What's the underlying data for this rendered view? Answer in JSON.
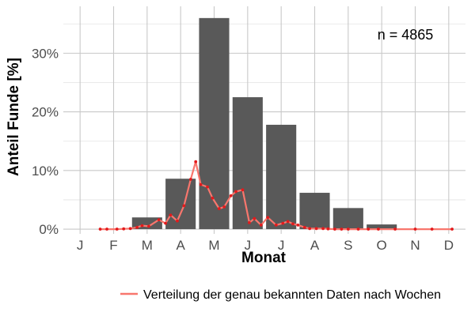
{
  "chart_data": {
    "type": "bar",
    "xlabel": "Monat",
    "ylabel": "Anteil Funde [%]",
    "annotation": "n = 4865",
    "categories": [
      "J",
      "F",
      "M",
      "A",
      "M",
      "J",
      "J",
      "A",
      "S",
      "O",
      "N",
      "D"
    ],
    "series": [
      {
        "type": "bar",
        "values": [
          0,
          0,
          2.0,
          8.6,
          36.0,
          22.5,
          17.8,
          6.2,
          3.6,
          0.8,
          0,
          0
        ],
        "color": "#595959"
      },
      {
        "type": "line",
        "name": "Verteilung der genau bekannten Daten nach Wochen",
        "color": "#f8766d",
        "point_color": "#e31a1c",
        "x": [
          1.6,
          1.8,
          2.1,
          2.3,
          2.5,
          2.7,
          2.85,
          3.05,
          3.35,
          3.55,
          3.7,
          3.9,
          4.1,
          4.3,
          4.45,
          4.6,
          4.8,
          4.95,
          5.15,
          5.3,
          5.5,
          5.65,
          5.85,
          6.05,
          6.2,
          6.4,
          6.6,
          6.85,
          7.05,
          7.2,
          7.35,
          7.5,
          7.7,
          7.85,
          8.05,
          8.25,
          8.4,
          8.6,
          8.8,
          9.0,
          9.3,
          9.6,
          9.9,
          10.4,
          11.0,
          11.5,
          12.1
        ],
        "y": [
          0,
          0,
          0,
          0.05,
          0.1,
          0.3,
          0.6,
          0.5,
          1.6,
          1.0,
          2.4,
          1.4,
          4.0,
          8.5,
          11.5,
          7.6,
          7.2,
          5.3,
          3.5,
          3.8,
          5.7,
          6.4,
          6.7,
          1.1,
          1.8,
          0.7,
          2.0,
          0.7,
          1.0,
          1.3,
          0.9,
          0.7,
          0.3,
          0.1,
          0.1,
          0.1,
          0.05,
          0,
          0,
          0,
          0,
          0,
          0,
          0,
          0,
          0,
          0
        ]
      }
    ],
    "ylim": [
      -0.8,
      38
    ],
    "yticks": [
      0,
      10,
      20,
      30
    ],
    "ytick_labels": [
      "0%",
      "10%",
      "20%",
      "30%"
    ],
    "grid": true,
    "legend_position": "bottom-right",
    "background": "#ffffff",
    "grid_color": "#c8c8c8"
  }
}
